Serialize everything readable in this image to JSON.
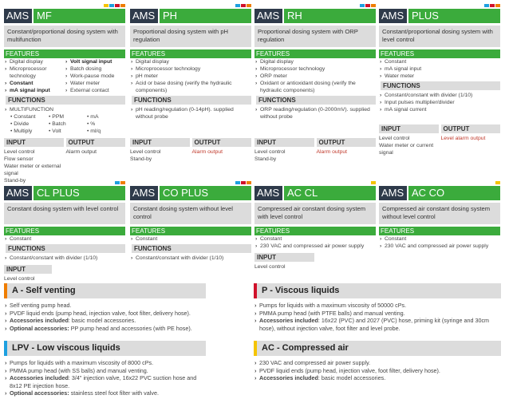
{
  "colors": {
    "green": "#3bab3c",
    "dark": "#2e3a4a",
    "yellow": "#f5c400",
    "blue": "#1ea0e0",
    "red": "#d0112b",
    "orange": "#ef7d00",
    "alarm": "#c0392b"
  },
  "cards": [
    {
      "prefix": "AMS",
      "model": "MF",
      "squares": [
        "yellow",
        "blue",
        "red",
        "orange"
      ],
      "description": "Constant/proportional dosing system with multifunction",
      "features_label": "FEATURES",
      "features_left": [
        {
          "t": "Digital display"
        },
        {
          "t": "Microprocessor technology"
        },
        {
          "t": "Constant",
          "b": true
        },
        {
          "t": "mA signal input",
          "b": true
        }
      ],
      "features_right": [
        {
          "t": "Volt signal input",
          "b": true
        },
        {
          "t": "Batch dosing"
        },
        {
          "t": "Work-pause mode"
        },
        {
          "t": "Water meter"
        },
        {
          "t": "External contact"
        }
      ],
      "functions_label": "FUNCTIONS",
      "functions": [
        "MULTIFUNCTION"
      ],
      "subfunctions": [
        "Constant",
        "PPM",
        "mA",
        "Divide",
        "Batch",
        "%",
        "Multiply",
        "Volt",
        "ml/q"
      ],
      "input_label": "INPUT",
      "input": [
        "Level control",
        "Flow sensor",
        "Water meter or external signal",
        "Stand-by"
      ],
      "output_label": "OUTPUT",
      "output": [
        "Alarm output"
      ],
      "output_red": false
    },
    {
      "prefix": "AMS",
      "model": "PH",
      "squares": [
        "blue",
        "red",
        "orange"
      ],
      "description": "Proportional dosing system with pH regulation",
      "features_label": "FEATURES",
      "features": [
        "Digital display",
        "Microprocessor technology",
        "pH meter",
        "Acid or base dosing (verify the hydraulic components)"
      ],
      "functions_label": "FUNCTIONS",
      "functions": [
        "pH reading/regulation (0-14pH). supplied without probe"
      ],
      "input_label": "INPUT",
      "input": [
        "Level control",
        "Stand-by"
      ],
      "output_label": "OUTPUT",
      "output": [
        "Alarm output"
      ],
      "output_red": true
    },
    {
      "prefix": "AMS",
      "model": "RH",
      "squares": [
        "blue",
        "red",
        "orange"
      ],
      "description": "Proportional dosing system with ORP regulation",
      "features_label": "FEATURES",
      "features": [
        "Digital display",
        "Microprocessor technology",
        "ORP meter",
        "Oxidant or antioxidant dosing (verify the hydraulic components)"
      ],
      "functions_label": "FUNCTIONS",
      "functions": [
        "ORP reading/regulation (0-2000mV). supplied without probe"
      ],
      "input_label": "INPUT",
      "input": [
        "Level control",
        "Stand-by"
      ],
      "output_label": "OUTPUT",
      "output": [
        "Alarm output"
      ],
      "output_red": true
    },
    {
      "prefix": "AMS",
      "model": "PLUS",
      "squares": [
        "blue",
        "red",
        "orange"
      ],
      "description": "Constant/proportional dosing system with level control",
      "features_label": "FEATURES",
      "features": [
        "Constant",
        "mA signal input",
        "Water meter"
      ],
      "functions_label": "FUNCTIONS",
      "functions": [
        "Constant/constant with divider (1/10)",
        "Input pulses multiplier/divider",
        "mA signal current"
      ],
      "input_label": "INPUT",
      "input": [
        "Level control",
        "Water meter or current signal"
      ],
      "output_label": "OUTPUT",
      "output": [
        "Level alarm output"
      ],
      "output_red": true
    },
    {
      "prefix": "AMS",
      "model": "CL PLUS",
      "squares": [
        "blue",
        "orange"
      ],
      "description": "Constant dosing system with level control",
      "features_label": "FEATURES",
      "features": [
        "Constant"
      ],
      "functions_label": "FUNCTIONS",
      "functions": [
        "Constant/constant with divider (1/10)"
      ],
      "input_label": "INPUT",
      "input": [
        "Level control"
      ]
    },
    {
      "prefix": "AMS",
      "model": "CO PLUS",
      "squares": [
        "blue",
        "red",
        "orange"
      ],
      "description": "Constant dosing system without level control",
      "features_label": "FEATURES",
      "features": [
        "Constant"
      ],
      "functions_label": "FUNCTIONS",
      "functions": [
        "Constant/constant with divider (1/10)"
      ]
    },
    {
      "prefix": "AMS",
      "model": "AC CL",
      "squares": [
        "yellow"
      ],
      "description": "Compressed air constant dosing system with level control",
      "features_label": "FEATURES",
      "features": [
        "Constant",
        "230 VAC and compressed air power supply"
      ],
      "input_label": "INPUT",
      "input": [
        "Level control"
      ]
    },
    {
      "prefix": "AMS",
      "model": "AC CO",
      "squares": [
        "yellow"
      ],
      "description": "Compressed air constant dosing system without level control",
      "features_label": "FEATURES",
      "features": [
        "Constant",
        "230 VAC and compressed air power supply"
      ]
    }
  ],
  "sections": [
    {
      "title": "A - Self venting",
      "color": "orange",
      "items": [
        {
          "t": "Self venting pump head."
        },
        {
          "t": "PVDF liquid ends (pump head, injection valve, foot filter, delivery hose)."
        },
        {
          "b": "Accessories included",
          "t": ": basic model accessories."
        },
        {
          "b": "Optional accessories:",
          "t": " PP pump head and accessories (with PE hose)."
        }
      ]
    },
    {
      "title": "P - Viscous liquids",
      "color": "red",
      "items": [
        {
          "t": "Pumps for liquids with a maximum viscosity of 50000 cPs."
        },
        {
          "t": "PMMA pump head (with PTFE balls) and manual venting."
        },
        {
          "b": "Accessories included",
          "t": ": 16x22 (PVC) and 2027 (PVC) hose, priming kit (syringe and 30cm hose), without injection valve, foot filter and level probe."
        }
      ]
    },
    {
      "title": "LPV - Low viscous liquids",
      "color": "blue",
      "items": [
        {
          "t": "Pumps for liquids with a maximum viscosity of 8000 cPs."
        },
        {
          "t": "PMMA pump head (with SS balls) and manual venting."
        },
        {
          "b": "Accessories included",
          "t": ": 3/4\" injection valve, 16x22 PVC suction hose and 8x12 PE injection hose."
        },
        {
          "b": "Optional accessories:",
          "t": " stainless steel foot filter with valve."
        }
      ]
    },
    {
      "title": "AC - Compressed air",
      "color": "yellow",
      "items": [
        {
          "t": "230 VAC and compressed air power supply."
        },
        {
          "t": "PVDF liquid ends (pump head, injection valve, foot filter, delivery hose)."
        },
        {
          "b": "Accessories included",
          "t": ": basic model accessories."
        }
      ]
    }
  ]
}
